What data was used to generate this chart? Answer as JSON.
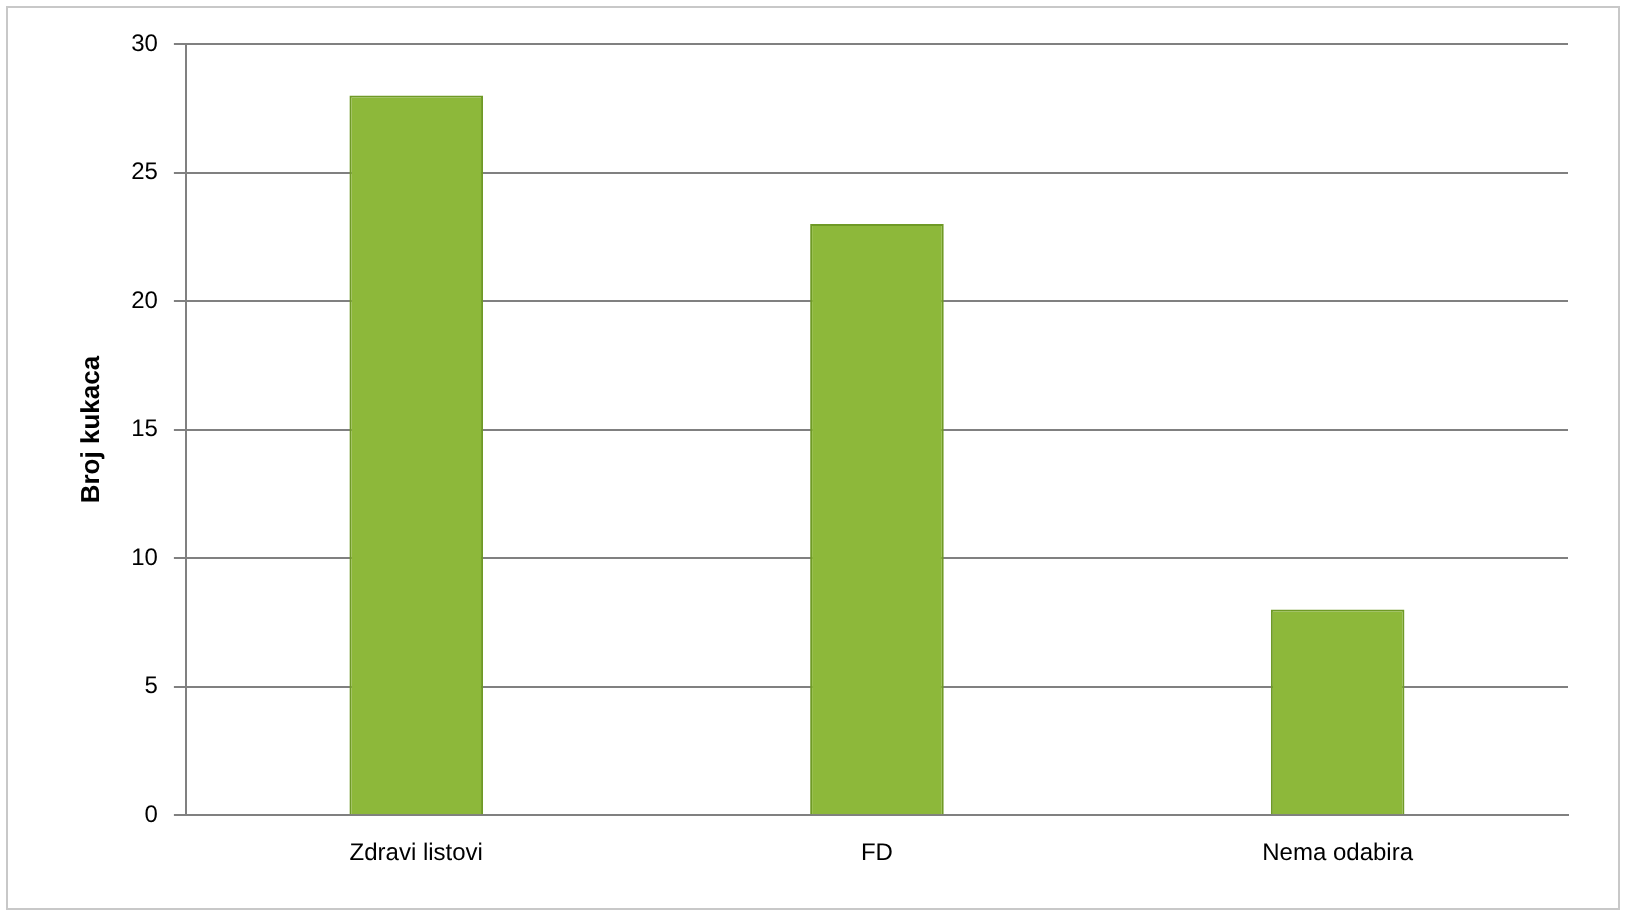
{
  "chart_data": {
    "type": "bar",
    "ylabel": "Broj kukaca",
    "categories": [
      "Zdravi listovi",
      "FD",
      "Nema odabira"
    ],
    "values": [
      28,
      23,
      8
    ],
    "color": "#8db83a",
    "ylim": [
      0,
      30
    ],
    "yticks": [
      0,
      5,
      10,
      15,
      20,
      25,
      30
    ],
    "grid": "y"
  }
}
